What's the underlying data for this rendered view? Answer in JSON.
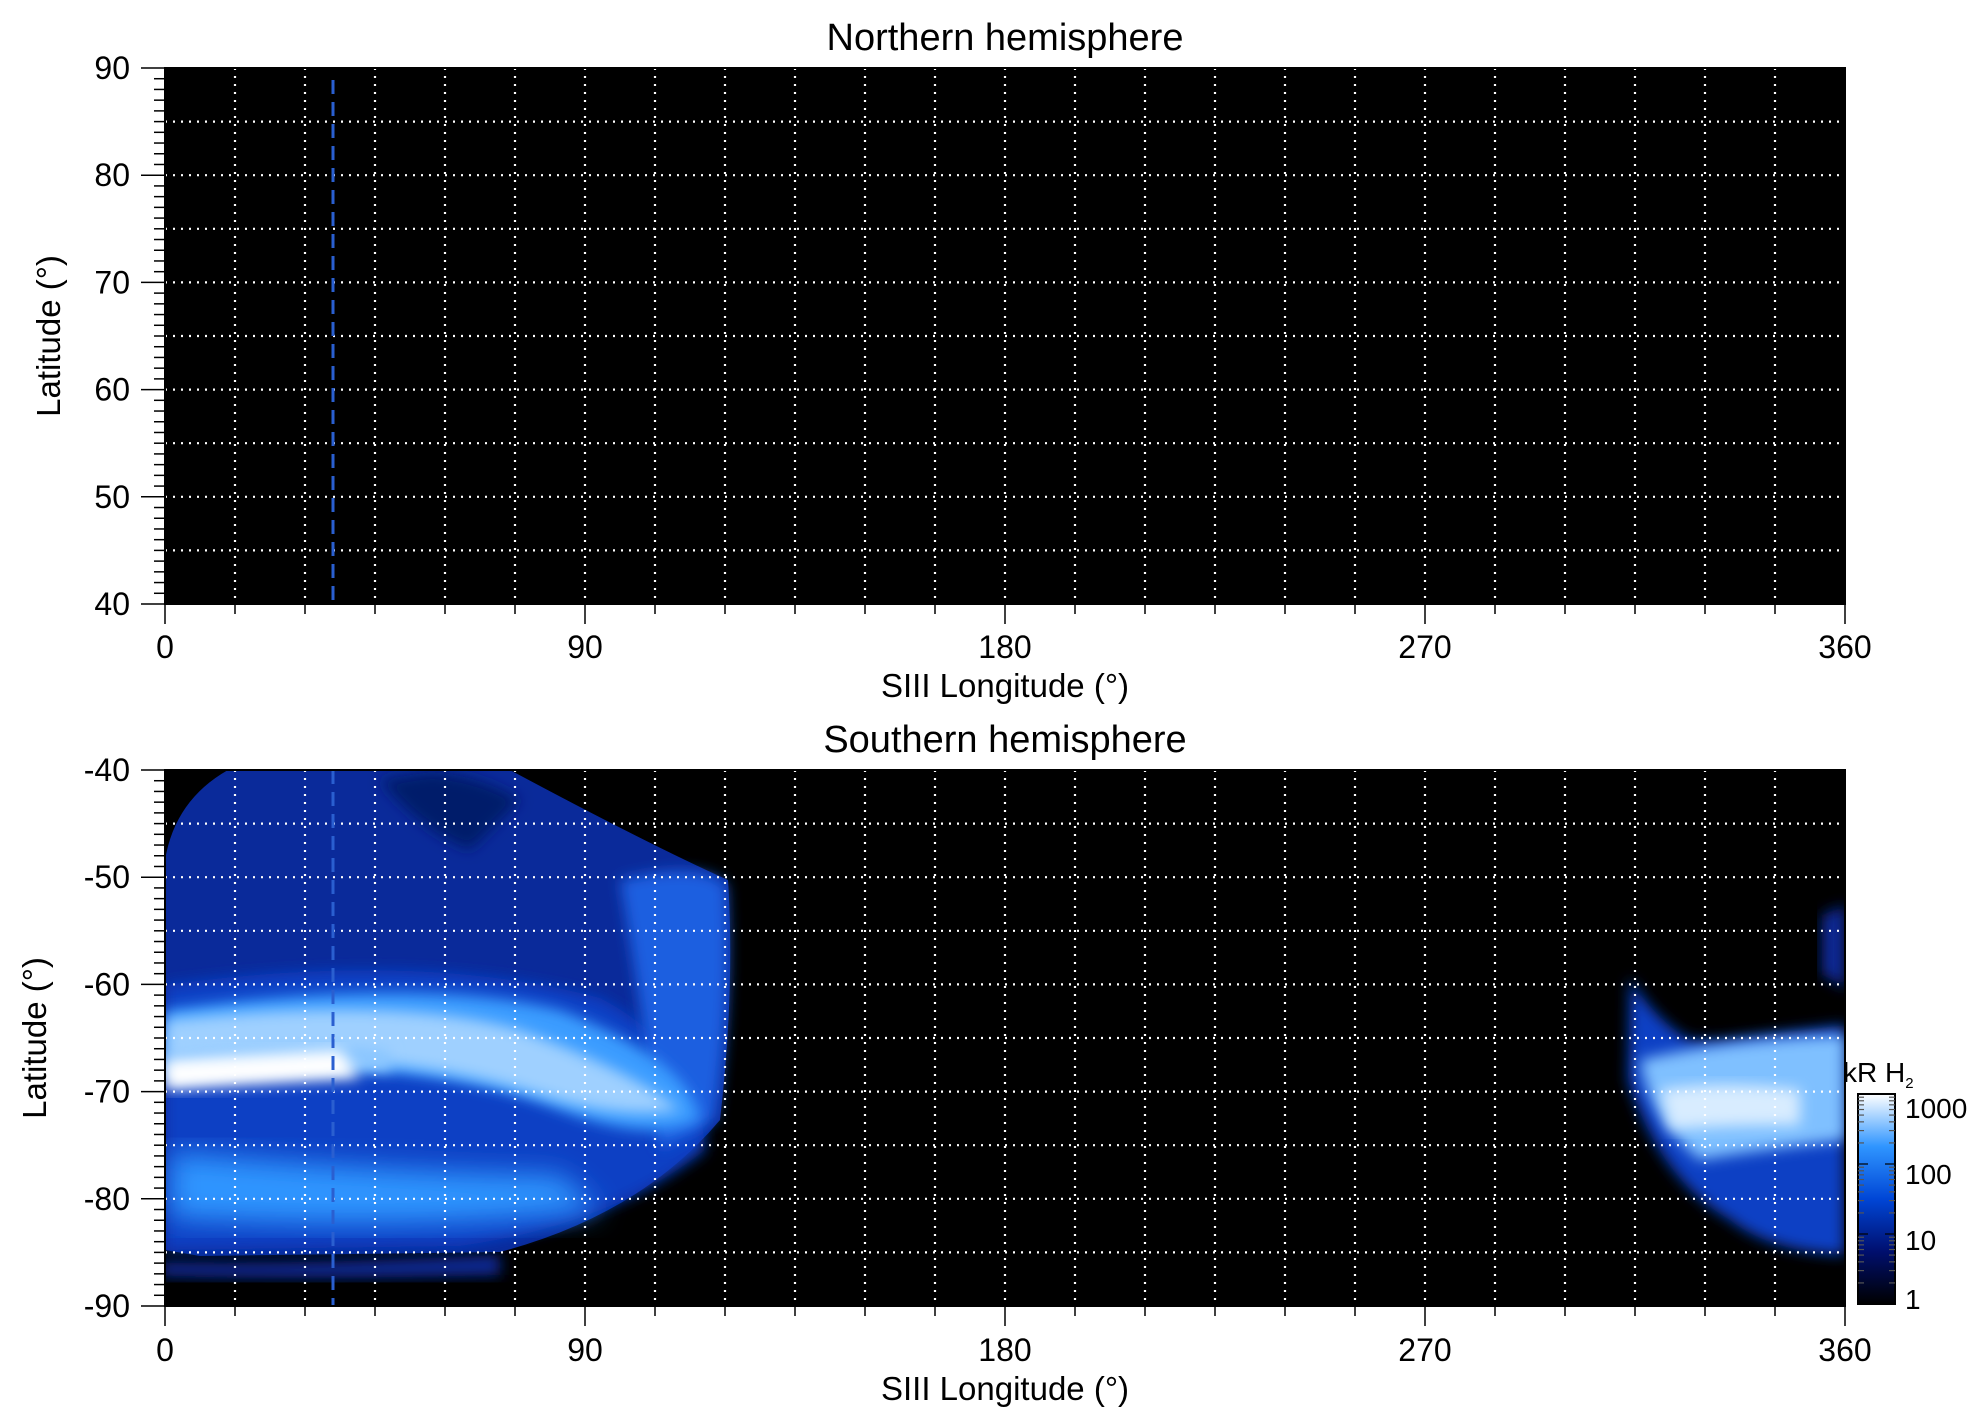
{
  "chart_data": [
    {
      "type": "heatmap",
      "title": "Northern hemisphere",
      "xlabel": "SIII Longitude (°)",
      "ylabel": "Latitude (°)",
      "xlim": [
        0,
        360
      ],
      "ylim": [
        40,
        90
      ],
      "xticks": [
        "0",
        "90",
        "180",
        "270",
        "360"
      ],
      "yticks": [
        "90",
        "80",
        "70",
        "60",
        "50",
        "40"
      ],
      "grid": true,
      "marker_longitude": 36,
      "background_color": "#000000",
      "emission": "none"
    },
    {
      "type": "heatmap",
      "title": "Southern hemisphere",
      "xlabel": "SIII Longitude (°)",
      "ylabel": "Latitude (°)",
      "xlim": [
        0,
        360
      ],
      "ylim": [
        -90,
        -40
      ],
      "xticks": [
        "0",
        "90",
        "180",
        "270",
        "360"
      ],
      "yticks": [
        "-40",
        "-50",
        "-60",
        "-70",
        "-80",
        "-90"
      ],
      "grid": true,
      "marker_longitude": 36,
      "background_color": "#000000",
      "main_oval_latitude": -67.5,
      "emission_regions": [
        {
          "lon_min": 0,
          "lon_max": 121
        },
        {
          "lon_min": 314,
          "lon_max": 360
        }
      ],
      "colorbar": {
        "label": "kR H",
        "label_sub": "2",
        "scale": "log",
        "range": [
          1,
          1000
        ],
        "ticks": [
          "1000",
          "100",
          "10",
          "1"
        ],
        "colors": [
          "#000000",
          "#000f6e",
          "#0046d6",
          "#2f95ff",
          "#ffffff"
        ]
      }
    }
  ]
}
